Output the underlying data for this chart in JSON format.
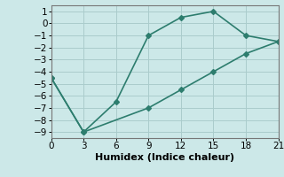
{
  "x_upper": [
    0,
    3,
    6,
    9,
    12,
    15,
    18,
    21
  ],
  "y_upper": [
    -4.5,
    -9.0,
    -6.5,
    -1.0,
    0.5,
    1.0,
    -1.0,
    -1.5
  ],
  "x_lower": [
    0,
    3,
    9,
    12,
    15,
    18,
    21
  ],
  "y_lower": [
    -4.5,
    -9.0,
    -7.0,
    -5.5,
    -4.0,
    -2.5,
    -1.5
  ],
  "line_color": "#2d7d6e",
  "bg_color": "#cce8e8",
  "grid_color": "#aacccc",
  "xlabel": "Humidex (Indice chaleur)",
  "xlim": [
    0,
    21
  ],
  "ylim": [
    -9.5,
    1.5
  ],
  "xticks": [
    0,
    3,
    6,
    9,
    12,
    15,
    18,
    21
  ],
  "yticks": [
    1,
    0,
    -1,
    -2,
    -3,
    -4,
    -5,
    -6,
    -7,
    -8,
    -9
  ],
  "marker": "D",
  "marker_size": 3,
  "linewidth": 1.2,
  "tick_fontsize": 7.5,
  "xlabel_fontsize": 8
}
